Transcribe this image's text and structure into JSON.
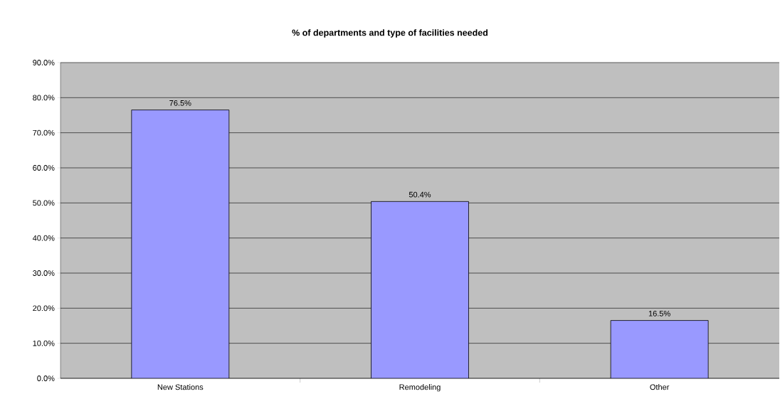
{
  "chart_data": {
    "type": "bar",
    "title": "% of departments and type of facilities needed",
    "categories": [
      "New Stations",
      "Remodeling",
      "Other"
    ],
    "values": [
      76.5,
      50.4,
      16.5
    ],
    "value_labels": [
      "76.5%",
      "50.4%",
      "16.5%"
    ],
    "color": "#9999ff",
    "ylim": [
      0,
      90
    ],
    "yticks": [
      {
        "value": 0,
        "label": "0.0%"
      },
      {
        "value": 10,
        "label": "10.0%"
      },
      {
        "value": 20,
        "label": "20.0%"
      },
      {
        "value": 30,
        "label": "30.0%"
      },
      {
        "value": 40,
        "label": "40.0%"
      },
      {
        "value": 50,
        "label": "50.0%"
      },
      {
        "value": 60,
        "label": "60.0%"
      },
      {
        "value": 70,
        "label": "70.0%"
      },
      {
        "value": 80,
        "label": "80.0%"
      },
      {
        "value": 90,
        "label": "90.0%"
      }
    ],
    "grid": "y"
  }
}
